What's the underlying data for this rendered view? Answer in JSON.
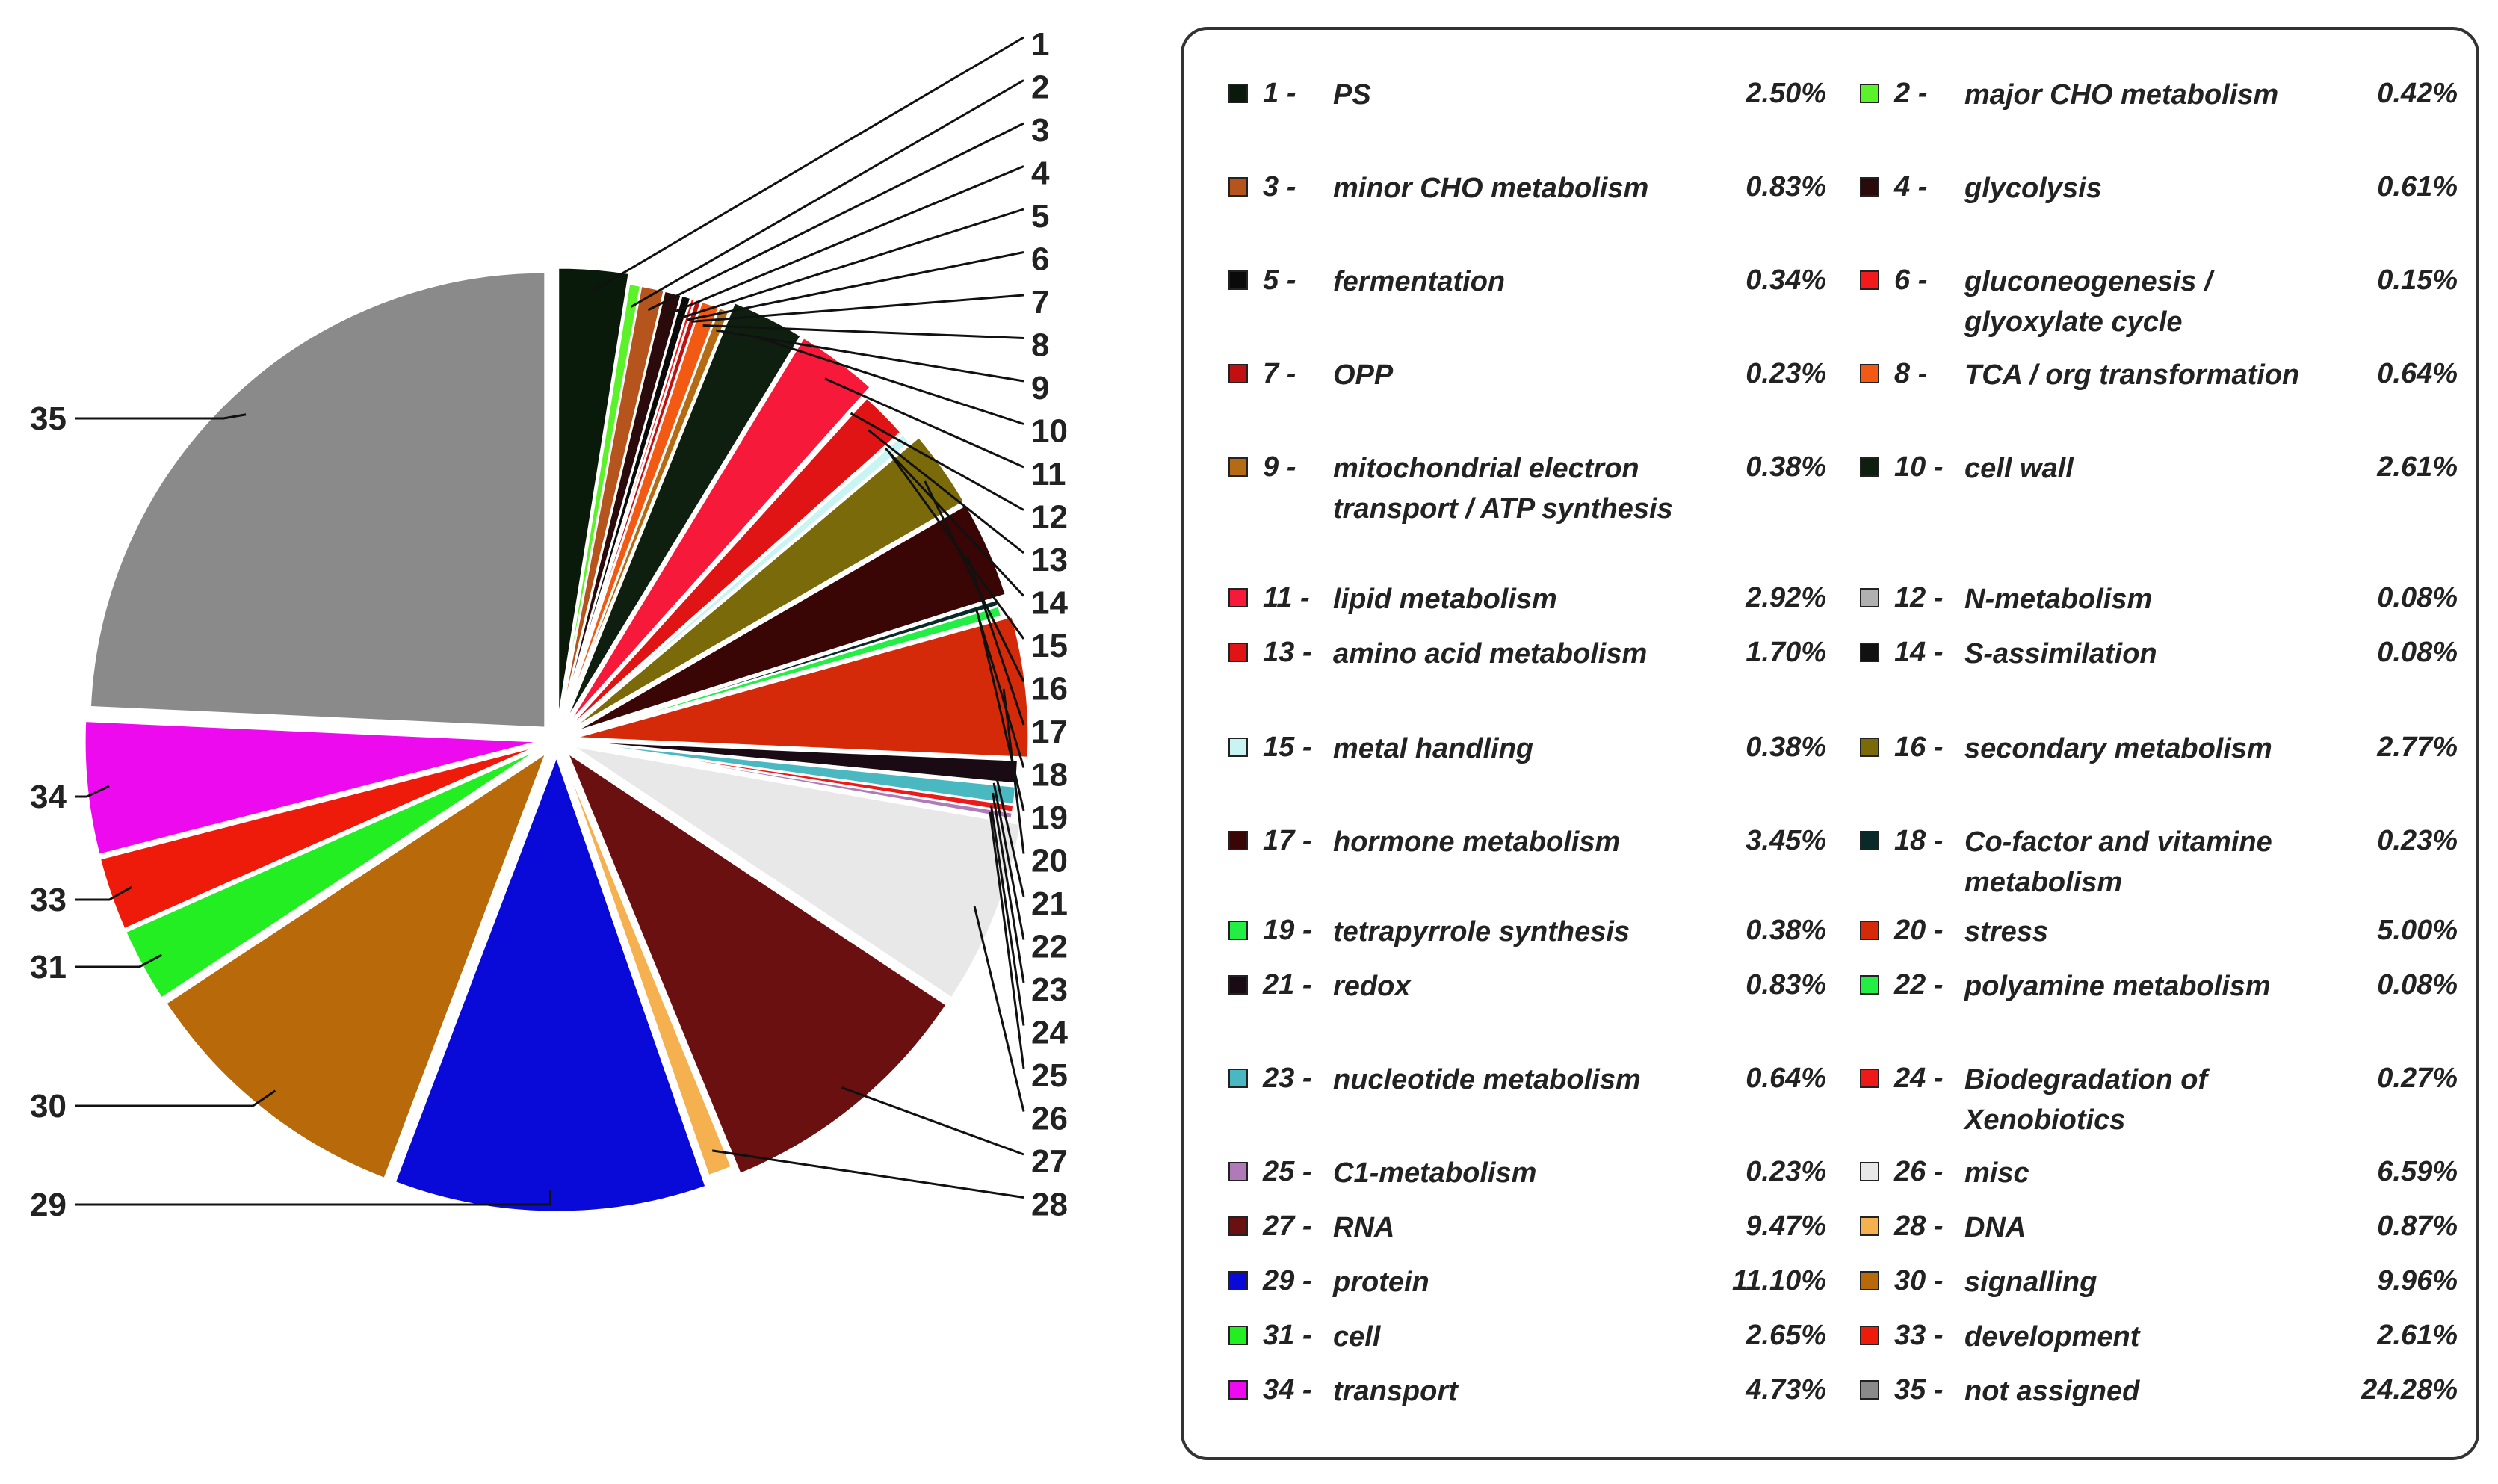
{
  "chart_data": {
    "type": "pie",
    "title": "",
    "slices": [
      {
        "num": "1",
        "label": "PS",
        "value": 2.5,
        "pct": "2.50%",
        "color": "#0a1a0a"
      },
      {
        "num": "2",
        "label": "major CHO metabolism",
        "value": 0.42,
        "pct": "0.42%",
        "color": "#5cf22a"
      },
      {
        "num": "3",
        "label": "minor CHO metabolism",
        "value": 0.83,
        "pct": "0.83%",
        "color": "#b5541c"
      },
      {
        "num": "4",
        "label": "glycolysis",
        "value": 0.61,
        "pct": "0.61%",
        "color": "#2a0a0a"
      },
      {
        "num": "5",
        "label": "fermentation",
        "value": 0.34,
        "pct": "0.34%",
        "color": "#0a0a0a"
      },
      {
        "num": "6",
        "label": "gluconeogenesis / glyoxylate cycle",
        "value": 0.15,
        "pct": "0.15%",
        "color": "#f21a1a"
      },
      {
        "num": "7",
        "label": "OPP",
        "value": 0.23,
        "pct": "0.23%",
        "color": "#c01010"
      },
      {
        "num": "8",
        "label": "TCA / org transformation",
        "value": 0.64,
        "pct": "0.64%",
        "color": "#f25a14"
      },
      {
        "num": "9",
        "label": "mitochondrial electron transport / ATP synthesis",
        "value": 0.38,
        "pct": "0.38%",
        "color": "#b56a14"
      },
      {
        "num": "10",
        "label": "cell wall",
        "value": 2.61,
        "pct": "2.61%",
        "color": "#0f1f0f"
      },
      {
        "num": "11",
        "label": "lipid metabolism",
        "value": 2.92,
        "pct": "2.92%",
        "color": "#f7193a"
      },
      {
        "num": "12",
        "label": "N-metabolism",
        "value": 0.08,
        "pct": "0.08%",
        "color": "#b0b0b0"
      },
      {
        "num": "13",
        "label": "amino acid metabolism",
        "value": 1.7,
        "pct": "1.70%",
        "color": "#e01414"
      },
      {
        "num": "14",
        "label": "S-assimilation",
        "value": 0.08,
        "pct": "0.08%",
        "color": "#111111"
      },
      {
        "num": "15",
        "label": "metal handling",
        "value": 0.38,
        "pct": "0.38%",
        "color": "#c8f4f4"
      },
      {
        "num": "16",
        "label": "secondary metabolism",
        "value": 2.77,
        "pct": "2.77%",
        "color": "#7a6a0a"
      },
      {
        "num": "17",
        "label": "hormone metabolism",
        "value": 3.45,
        "pct": "3.45%",
        "color": "#3a0505"
      },
      {
        "num": "18",
        "label": "Co-factor and vitamine metabolism",
        "value": 0.23,
        "pct": "0.23%",
        "color": "#0a2a2a"
      },
      {
        "num": "19",
        "label": "tetrapyrrole synthesis",
        "value": 0.38,
        "pct": "0.38%",
        "color": "#22ee44"
      },
      {
        "num": "20",
        "label": "stress",
        "value": 5.0,
        "pct": "5.00%",
        "color": "#d42a0a"
      },
      {
        "num": "21",
        "label": "redox",
        "value": 0.83,
        "pct": "0.83%",
        "color": "#1a0a14"
      },
      {
        "num": "22",
        "label": "polyamine metabolism",
        "value": 0.08,
        "pct": "0.08%",
        "color": "#22ee44"
      },
      {
        "num": "23",
        "label": "nucleotide metabolism",
        "value": 0.64,
        "pct": "0.64%",
        "color": "#4ab8c0"
      },
      {
        "num": "24",
        "label": "Biodegradation of Xenobiotics",
        "value": 0.27,
        "pct": "0.27%",
        "color": "#ee1a1a"
      },
      {
        "num": "25",
        "label": "C1-metabolism",
        "value": 0.23,
        "pct": "0.23%",
        "color": "#b07ab8"
      },
      {
        "num": "26",
        "label": "misc",
        "value": 6.59,
        "pct": "6.59%",
        "color": "#e8e8e8"
      },
      {
        "num": "27",
        "label": "RNA",
        "value": 9.47,
        "pct": "9.47%",
        "color": "#6a1010"
      },
      {
        "num": "28",
        "label": "DNA",
        "value": 0.87,
        "pct": "0.87%",
        "color": "#f5b050"
      },
      {
        "num": "29",
        "label": "protein",
        "value": 11.1,
        "pct": "11.10%",
        "color": "#0a0ad8"
      },
      {
        "num": "30",
        "label": "signalling",
        "value": 9.96,
        "pct": "9.96%",
        "color": "#b86a0a"
      },
      {
        "num": "31",
        "label": "cell",
        "value": 2.65,
        "pct": "2.65%",
        "color": "#22ee22"
      },
      {
        "num": "33",
        "label": "development",
        "value": 2.61,
        "pct": "2.61%",
        "color": "#ee1a0a"
      },
      {
        "num": "34",
        "label": "transport",
        "value": 4.73,
        "pct": "4.73%",
        "color": "#ee0aee"
      },
      {
        "num": "35",
        "label": "not assigned",
        "value": 24.28,
        "pct": "24.28%",
        "color": "#8a8a8a"
      }
    ],
    "legend": {
      "col1": [
        {
          "num": "1 -",
          "label": "PS",
          "pct": "2.50%",
          "color": "#0a1a0a"
        },
        {
          "num": "3 -",
          "label": "minor CHO metabolism",
          "pct": "0.83%",
          "color": "#b5541c"
        },
        {
          "num": "5 -",
          "label": "fermentation",
          "pct": "0.34%",
          "color": "#0a0a0a"
        },
        {
          "num": "7 -",
          "label": "OPP",
          "pct": "0.23%",
          "color": "#c01010"
        },
        {
          "num": "9 -",
          "label": "mitochondrial electron transport / ATP synthesis",
          "pct": "0.38%",
          "color": "#b56a14"
        },
        {
          "num": "11 -",
          "label": "lipid metabolism",
          "pct": "2.92%",
          "color": "#f7193a"
        },
        {
          "num": "13 -",
          "label": "amino acid metabolism",
          "pct": "1.70%",
          "color": "#e01414"
        },
        {
          "num": "15 -",
          "label": "metal handling",
          "pct": "0.38%",
          "color": "#c8f4f4"
        },
        {
          "num": "17 -",
          "label": "hormone metabolism",
          "pct": "3.45%",
          "color": "#3a0505"
        },
        {
          "num": "19 -",
          "label": "tetrapyrrole synthesis",
          "pct": "0.38%",
          "color": "#22ee44"
        },
        {
          "num": "21 -",
          "label": "redox",
          "pct": "0.83%",
          "color": "#1a0a14"
        },
        {
          "num": "23 -",
          "label": "nucleotide metabolism",
          "pct": "0.64%",
          "color": "#4ab8c0"
        },
        {
          "num": "25 -",
          "label": "C1-metabolism",
          "pct": "0.23%",
          "color": "#b07ab8"
        },
        {
          "num": "27 -",
          "label": "RNA",
          "pct": "9.47%",
          "color": "#6a1010"
        },
        {
          "num": "29 -",
          "label": "protein",
          "pct": "11.10%",
          "color": "#0a0ad8"
        },
        {
          "num": "31 -",
          "label": "cell",
          "pct": "2.65%",
          "color": "#22ee22"
        },
        {
          "num": "34 -",
          "label": "transport",
          "pct": "4.73%",
          "color": "#ee0aee"
        }
      ],
      "col2": [
        {
          "num": "2 -",
          "label": "major CHO metabolism",
          "pct": "0.42%",
          "color": "#5cf22a"
        },
        {
          "num": "4 -",
          "label": "glycolysis",
          "pct": "0.61%",
          "color": "#2a0a0a"
        },
        {
          "num": "6 -",
          "label": "gluconeogenesis / glyoxylate cycle",
          "pct": "0.15%",
          "color": "#f21a1a"
        },
        {
          "num": "8 -",
          "label": "TCA / org transformation",
          "pct": "0.64%",
          "color": "#f25a14"
        },
        {
          "num": "10 -",
          "label": "cell wall",
          "pct": "2.61%",
          "color": "#0f1f0f"
        },
        {
          "num": "12 -",
          "label": "N-metabolism",
          "pct": "0.08%",
          "color": "#b0b0b0"
        },
        {
          "num": "14 -",
          "label": "S-assimilation",
          "pct": "0.08%",
          "color": "#111111"
        },
        {
          "num": "16 -",
          "label": "secondary metabolism",
          "pct": "2.77%",
          "color": "#7a6a0a"
        },
        {
          "num": "18 -",
          "label": "Co-factor and vitamine metabolism",
          "pct": "0.23%",
          "color": "#0a2a2a"
        },
        {
          "num": "20 -",
          "label": "stress",
          "pct": "5.00%",
          "color": "#d42a0a"
        },
        {
          "num": "22 -",
          "label": "polyamine metabolism",
          "pct": "0.08%",
          "color": "#22ee44"
        },
        {
          "num": "24 -",
          "label": "Biodegradation of Xenobiotics",
          "pct": "0.27%",
          "color": "#ee1a1a"
        },
        {
          "num": "26 -",
          "label": "misc",
          "pct": "6.59%",
          "color": "#e8e8e8"
        },
        {
          "num": "28 -",
          "label": "DNA",
          "pct": "0.87%",
          "color": "#f5b050"
        },
        {
          "num": "30 -",
          "label": "signalling",
          "pct": "9.96%",
          "color": "#b86a0a"
        },
        {
          "num": "33 -",
          "label": "development",
          "pct": "2.61%",
          "color": "#ee1a0a"
        },
        {
          "num": "35 -",
          "label": "not assigned",
          "pct": "24.28%",
          "color": "#8a8a8a"
        }
      ]
    },
    "legend_placement": "right"
  }
}
